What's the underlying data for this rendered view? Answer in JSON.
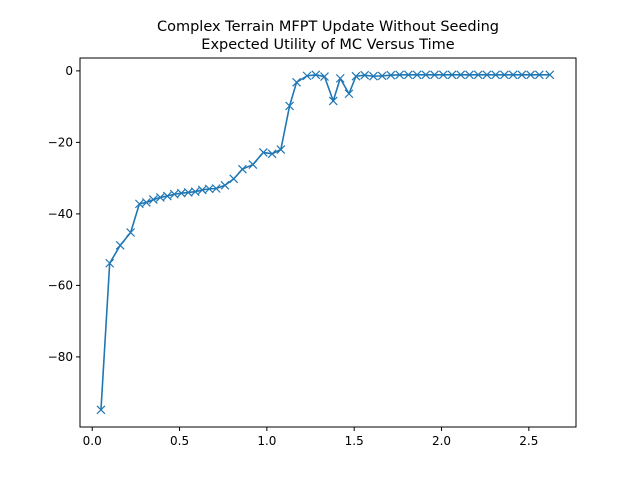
{
  "chart_data": {
    "type": "line",
    "title": "Complex Terrain MFPT Update Without Seeding",
    "subtitle": "Expected Utility of MC Versus Time",
    "xlabel": "",
    "ylabel": "",
    "xlim": [
      -0.07,
      2.77
    ],
    "ylim": [
      -99.6,
      3.6
    ],
    "xticks": [
      0.0,
      0.5,
      1.0,
      1.5,
      2.0,
      2.5
    ],
    "xtick_labels": [
      "0.0",
      "0.5",
      "1.0",
      "1.5",
      "2.0",
      "2.5"
    ],
    "yticks": [
      0,
      -20,
      -40,
      -60,
      -80
    ],
    "ytick_labels": [
      "0",
      "−20",
      "−40",
      "−60",
      "−80"
    ],
    "grid": false,
    "marker": "x",
    "color": "#1f77b4",
    "series": [
      {
        "x": [
          0.05,
          0.1,
          0.16,
          0.22,
          0.27,
          0.31,
          0.35,
          0.39,
          0.43,
          0.47,
          0.51,
          0.55,
          0.59,
          0.63,
          0.67,
          0.71,
          0.76,
          0.81,
          0.86,
          0.92,
          0.98,
          1.03,
          1.08,
          1.13,
          1.17,
          1.23,
          1.28,
          1.33,
          1.38,
          1.42,
          1.47,
          1.51,
          1.56,
          1.61,
          1.66,
          1.71,
          1.76,
          1.81,
          1.86,
          1.91,
          1.96,
          2.01,
          2.06,
          2.11,
          2.16,
          2.21,
          2.26,
          2.31,
          2.36,
          2.41,
          2.46,
          2.51,
          2.56,
          2.62
        ],
        "y": [
          -94.8,
          -53.8,
          -48.8,
          -45.2,
          -37.2,
          -36.8,
          -36.0,
          -35.4,
          -35.0,
          -34.5,
          -34.2,
          -34.0,
          -33.8,
          -33.3,
          -33.0,
          -32.9,
          -32.0,
          -30.2,
          -27.5,
          -26.2,
          -22.8,
          -23.2,
          -22.0,
          -9.8,
          -3.2,
          -1.4,
          -1.1,
          -1.6,
          -8.4,
          -2.1,
          -6.4,
          -1.5,
          -1.2,
          -1.5,
          -1.4,
          -1.2,
          -1.1,
          -1.1,
          -1.1,
          -1.1,
          -1.1,
          -1.1,
          -1.1,
          -1.1,
          -1.1,
          -1.1,
          -1.1,
          -1.1,
          -1.1,
          -1.1,
          -1.1,
          -1.1,
          -1.1,
          -1.1
        ]
      }
    ]
  }
}
